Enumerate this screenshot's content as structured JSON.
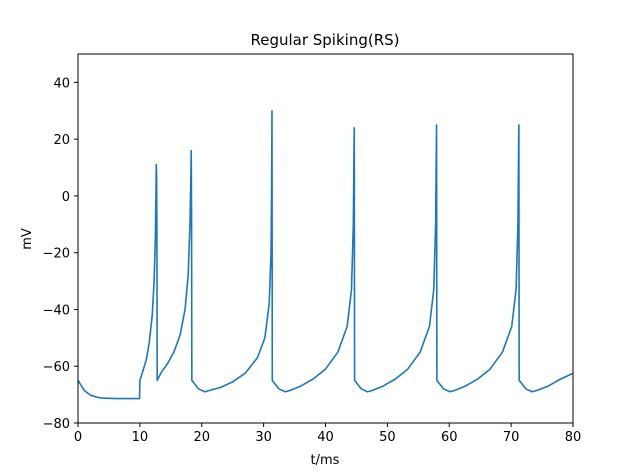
{
  "chart_data": {
    "type": "line",
    "title": "Regular Spiking(RS)",
    "xlabel": "t/ms",
    "ylabel": "mV",
    "xlim": [
      0,
      80
    ],
    "ylim": [
      -80,
      50
    ],
    "xticks": [
      0,
      10,
      20,
      30,
      40,
      50,
      60,
      70,
      80
    ],
    "yticks": [
      -80,
      -60,
      -40,
      -20,
      0,
      20,
      40
    ],
    "xtick_labels": [
      "0",
      "10",
      "20",
      "30",
      "40",
      "50",
      "60",
      "70",
      "80"
    ],
    "ytick_labels": [
      "−80",
      "−60",
      "−40",
      "−20",
      "0",
      "20",
      "40"
    ],
    "grid": false,
    "legend": "none",
    "line_color": "#1f77b4",
    "series": [
      {
        "x": [
          0,
          1,
          2,
          3,
          4,
          5,
          6,
          7,
          8,
          9,
          9.95,
          10,
          10.3,
          11,
          11.5,
          12,
          12.3,
          12.5,
          12.6,
          12.65,
          12.7,
          12.75,
          12.8,
          13.5,
          14.5,
          15.5,
          16.5,
          17.3,
          17.8,
          18.1,
          18.25,
          18.3,
          18.35,
          18.4,
          19.5,
          20.5,
          21.3,
          23,
          25,
          27,
          29,
          30.2,
          30.9,
          31.2,
          31.3,
          31.35,
          31.4,
          32.5,
          33.5,
          34.3,
          36,
          38,
          40,
          42,
          43.5,
          44.2,
          44.5,
          44.6,
          44.65,
          44.7,
          45.8,
          46.8,
          47.6,
          49.3,
          51.3,
          53.3,
          55.3,
          56.8,
          57.5,
          57.8,
          57.9,
          57.95,
          58,
          59.1,
          60.1,
          60.9,
          62.6,
          64.6,
          66.6,
          68.6,
          70.1,
          70.8,
          71.1,
          71.2,
          71.25,
          71.3,
          72.4,
          73.4,
          74.2,
          76,
          78,
          80
        ],
        "y": [
          -65,
          -68.5,
          -70.2,
          -70.9,
          -71.2,
          -71.3,
          -71.4,
          -71.4,
          -71.4,
          -71.4,
          -71.4,
          -65,
          -63,
          -58,
          -52,
          -42,
          -30,
          -15,
          0,
          11,
          8,
          -10,
          -65,
          -62,
          -59,
          -55,
          -49,
          -40,
          -28,
          -10,
          8,
          16,
          -5,
          -65,
          -68,
          -69,
          -68.5,
          -67.5,
          -65.5,
          -62.5,
          -57,
          -50,
          -38,
          -20,
          5,
          30,
          -65,
          -68,
          -69,
          -68.5,
          -67,
          -64.5,
          -61,
          -55,
          -46,
          -33,
          -10,
          15,
          24,
          -65,
          -68,
          -69,
          -68.5,
          -67,
          -64.5,
          -61,
          -55,
          -46,
          -33,
          -10,
          15,
          25,
          -65,
          -68,
          -69,
          -68.5,
          -67,
          -64.5,
          -61,
          -55,
          -46,
          -33,
          -10,
          15,
          25,
          -65,
          -68,
          -69,
          -68.5,
          -67,
          -64.5,
          -62.5
        ]
      }
    ]
  }
}
